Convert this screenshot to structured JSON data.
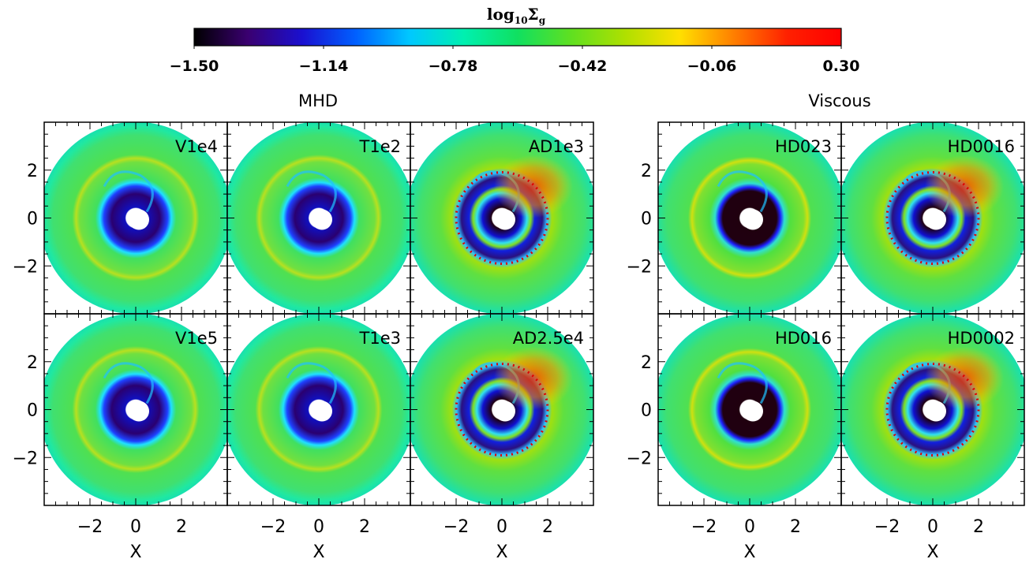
{
  "chart_data": {
    "type": "heatmap",
    "colorbar": {
      "title_main": "log",
      "title_sub": "10",
      "title_sym": "Σ",
      "title_sym_sub": "g",
      "min": -1.5,
      "max": 0.3,
      "ticks": [
        "−1.50",
        "−1.14",
        "−0.78",
        "−0.42",
        "−0.06",
        "0.30"
      ],
      "tick_values": [
        -1.5,
        -1.14,
        -0.78,
        -0.42,
        -0.06,
        0.3
      ],
      "colors": [
        "#000000",
        "#3a0070",
        "#1a10d0",
        "#0060ff",
        "#00c8ff",
        "#00f0b0",
        "#10e060",
        "#60e020",
        "#b0e000",
        "#ffe000",
        "#ff8000",
        "#ff2000",
        "#ff0000"
      ]
    },
    "groups": [
      {
        "title": "MHD",
        "panels": [
          {
            "label": "V1e4",
            "dust_ring": false,
            "gap": "blue",
            "arc": false
          },
          {
            "label": "T1e2",
            "dust_ring": false,
            "gap": "blue",
            "arc": false
          },
          {
            "label": "AD1e3",
            "dust_ring": true,
            "gap": "blue",
            "arc": true
          },
          {
            "label": "V1e5",
            "dust_ring": false,
            "gap": "blue",
            "arc": false
          },
          {
            "label": "T1e3",
            "dust_ring": false,
            "gap": "blue",
            "arc": false
          },
          {
            "label": "AD2.5e4",
            "dust_ring": true,
            "gap": "blue",
            "arc": true
          }
        ]
      },
      {
        "title": "Viscous",
        "panels": [
          {
            "label": "HD023",
            "dust_ring": false,
            "gap": "dark",
            "arc": false
          },
          {
            "label": "HD0016",
            "dust_ring": true,
            "gap": "blue",
            "arc": true
          },
          {
            "label": "HD016",
            "dust_ring": false,
            "gap": "dark",
            "arc": false
          },
          {
            "label": "HD0002",
            "dust_ring": true,
            "gap": "blue",
            "arc": true
          }
        ]
      }
    ],
    "xlabel": "X",
    "x_ticks": [
      "−2",
      "0",
      "2"
    ],
    "x_tick_values": [
      -2,
      0,
      2
    ],
    "y_ticks": [
      "2",
      "0",
      "−2"
    ],
    "y_tick_values": [
      2,
      0,
      -2
    ],
    "xlim": [
      -4,
      4
    ],
    "ylim": [
      -4,
      4
    ]
  }
}
